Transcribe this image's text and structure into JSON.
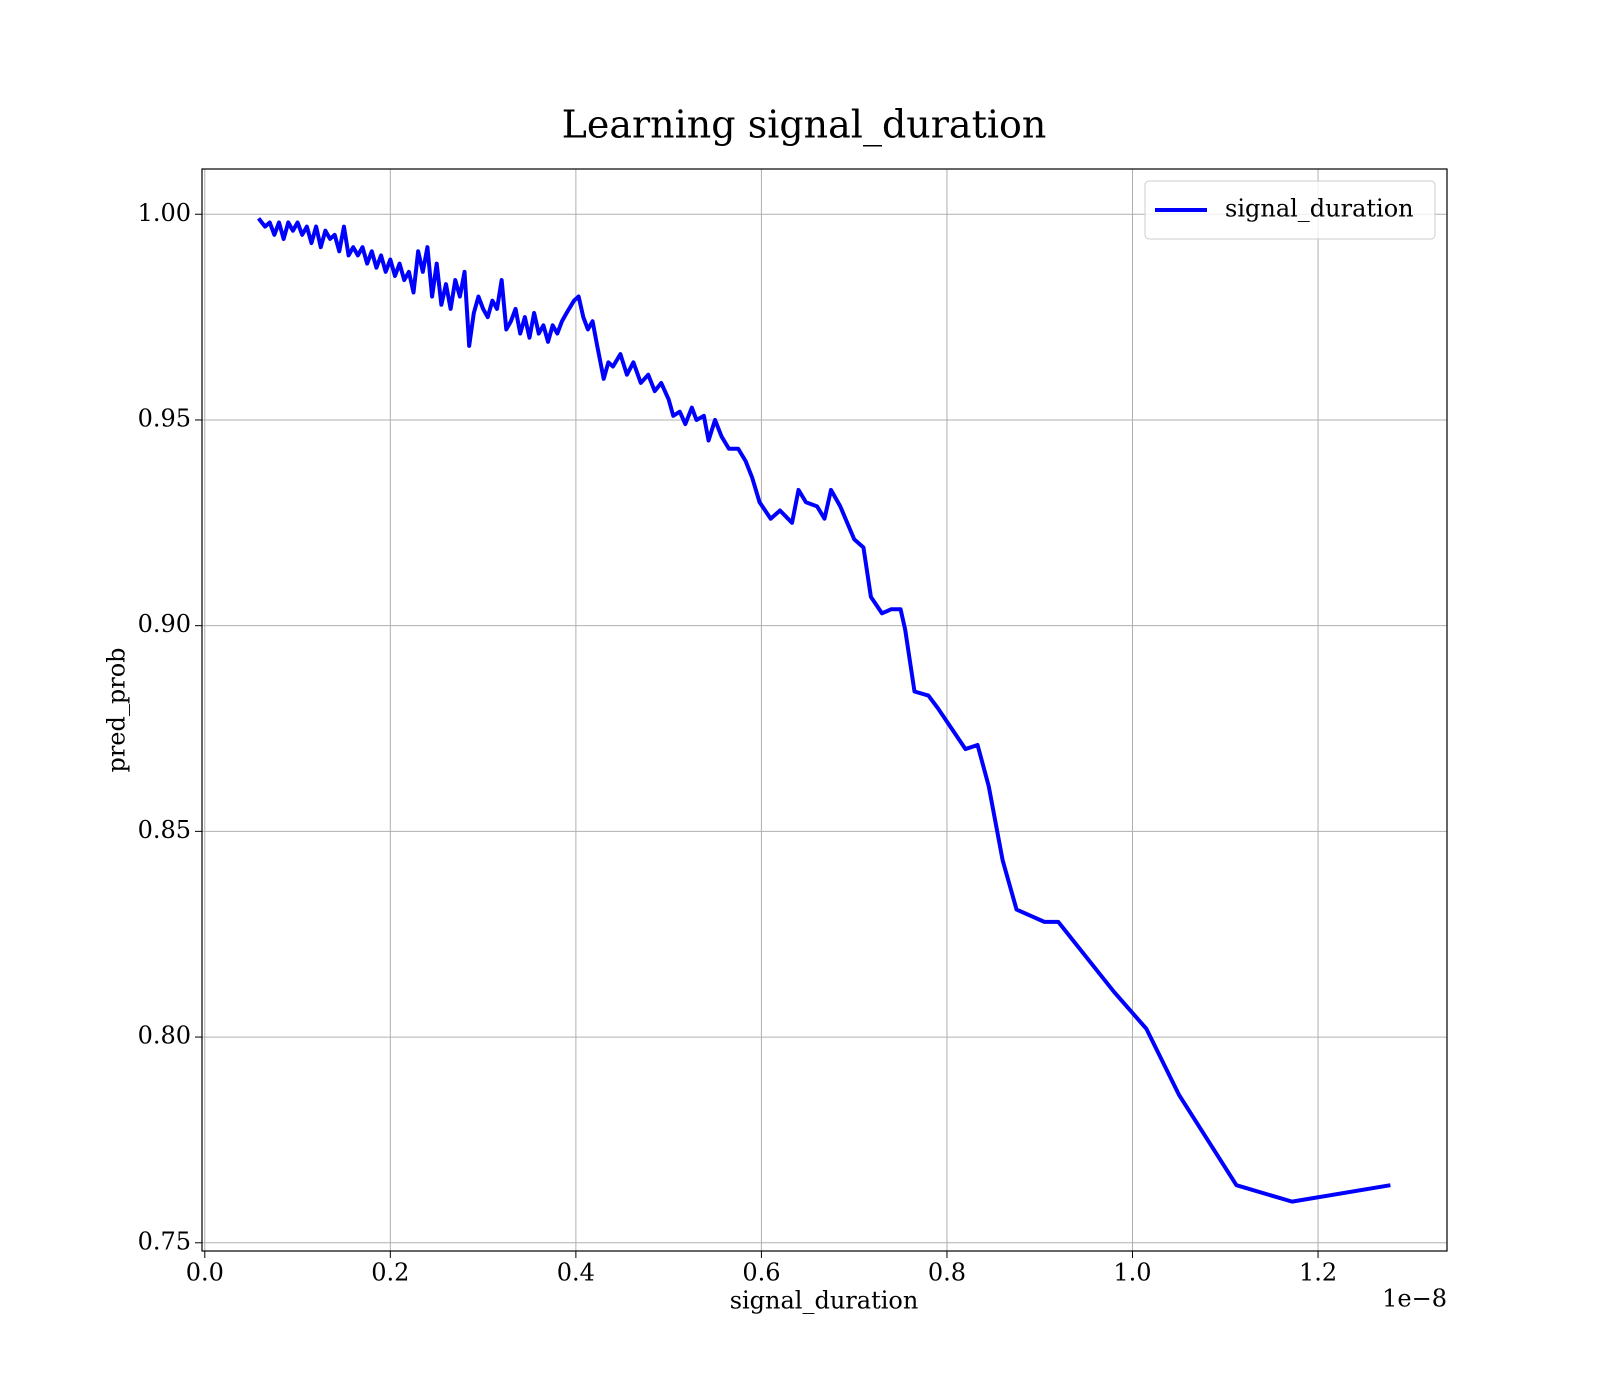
{
  "chart_data": {
    "type": "line",
    "title": "Learning signal_duration",
    "x_label": "signal_duration",
    "y_label": "pred_prob",
    "x_offset_label": "1e−8",
    "xlim": [
      -0.003,
      1.339
    ],
    "ylim": [
      0.748,
      1.011
    ],
    "xticks": [
      {
        "value": 0,
        "label": "0.0"
      },
      0.2,
      0.4,
      0.6,
      0.8,
      {
        "value": 1,
        "label": "1.0"
      },
      1.2
    ],
    "yticks": [
      0.75,
      {
        "value": 0.8,
        "label": "0.80"
      },
      0.85,
      {
        "value": 0.9,
        "label": "0.90"
      },
      0.95,
      {
        "value": 1,
        "label": "1.00"
      }
    ],
    "grid": true,
    "legend": "upper right",
    "x": [
      0.058,
      0.065,
      0.07,
      0.075,
      0.08,
      0.085,
      0.09,
      0.095,
      0.1,
      0.105,
      0.11,
      0.115,
      0.12,
      0.125,
      0.13,
      0.135,
      0.14,
      0.145,
      0.15,
      0.155,
      0.16,
      0.165,
      0.17,
      0.175,
      0.18,
      0.185,
      0.19,
      0.195,
      0.2,
      0.205,
      0.21,
      0.215,
      0.22,
      0.225,
      0.23,
      0.235,
      0.24,
      0.245,
      0.25,
      0.255,
      0.26,
      0.265,
      0.27,
      0.275,
      0.28,
      0.285,
      0.29,
      0.295,
      0.3,
      0.305,
      0.31,
      0.315,
      0.32,
      0.325,
      0.33,
      0.335,
      0.34,
      0.345,
      0.35,
      0.355,
      0.36,
      0.365,
      0.37,
      0.375,
      0.38,
      0.385,
      0.39,
      0.398,
      0.403,
      0.408,
      0.413,
      0.418,
      0.423,
      0.43,
      0.435,
      0.44,
      0.448,
      0.455,
      0.462,
      0.47,
      0.478,
      0.485,
      0.492,
      0.5,
      0.505,
      0.512,
      0.518,
      0.525,
      0.53,
      0.538,
      0.543,
      0.55,
      0.557,
      0.565,
      0.575,
      0.583,
      0.59,
      0.598,
      0.61,
      0.62,
      0.633,
      0.64,
      0.648,
      0.66,
      0.668,
      0.675,
      0.685,
      0.7,
      0.71,
      0.718,
      0.73,
      0.74,
      0.75,
      0.755,
      0.765,
      0.78,
      0.79,
      0.802,
      0.82,
      0.833,
      0.845,
      0.86,
      0.875,
      0.905,
      0.92,
      0.98,
      1.015,
      1.05,
      1.112,
      1.172,
      1.278
    ],
    "series": [
      {
        "name": "signal_duration",
        "color": "#0000ff",
        "values": [
          0.999,
          0.997,
          0.998,
          0.995,
          0.998,
          0.994,
          0.998,
          0.996,
          0.998,
          0.995,
          0.997,
          0.993,
          0.997,
          0.992,
          0.996,
          0.994,
          0.995,
          0.991,
          0.997,
          0.99,
          0.992,
          0.99,
          0.992,
          0.988,
          0.991,
          0.987,
          0.99,
          0.986,
          0.989,
          0.985,
          0.988,
          0.984,
          0.986,
          0.981,
          0.991,
          0.986,
          0.992,
          0.98,
          0.988,
          0.978,
          0.983,
          0.977,
          0.984,
          0.98,
          0.986,
          0.968,
          0.976,
          0.98,
          0.977,
          0.975,
          0.979,
          0.977,
          0.984,
          0.972,
          0.974,
          0.977,
          0.971,
          0.975,
          0.97,
          0.976,
          0.971,
          0.973,
          0.969,
          0.973,
          0.971,
          0.974,
          0.976,
          0.979,
          0.98,
          0.975,
          0.972,
          0.974,
          0.968,
          0.96,
          0.964,
          0.963,
          0.966,
          0.961,
          0.964,
          0.959,
          0.961,
          0.957,
          0.959,
          0.955,
          0.951,
          0.952,
          0.949,
          0.953,
          0.95,
          0.951,
          0.945,
          0.95,
          0.946,
          0.943,
          0.943,
          0.94,
          0.936,
          0.93,
          0.926,
          0.928,
          0.925,
          0.933,
          0.93,
          0.929,
          0.926,
          0.933,
          0.929,
          0.921,
          0.919,
          0.907,
          0.903,
          0.904,
          0.904,
          0.899,
          0.884,
          0.883,
          0.88,
          0.876,
          0.87,
          0.871,
          0.861,
          0.843,
          0.831,
          0.828,
          0.828,
          0.811,
          0.802,
          0.786,
          0.764,
          0.76,
          0.764
        ]
      }
    ]
  }
}
